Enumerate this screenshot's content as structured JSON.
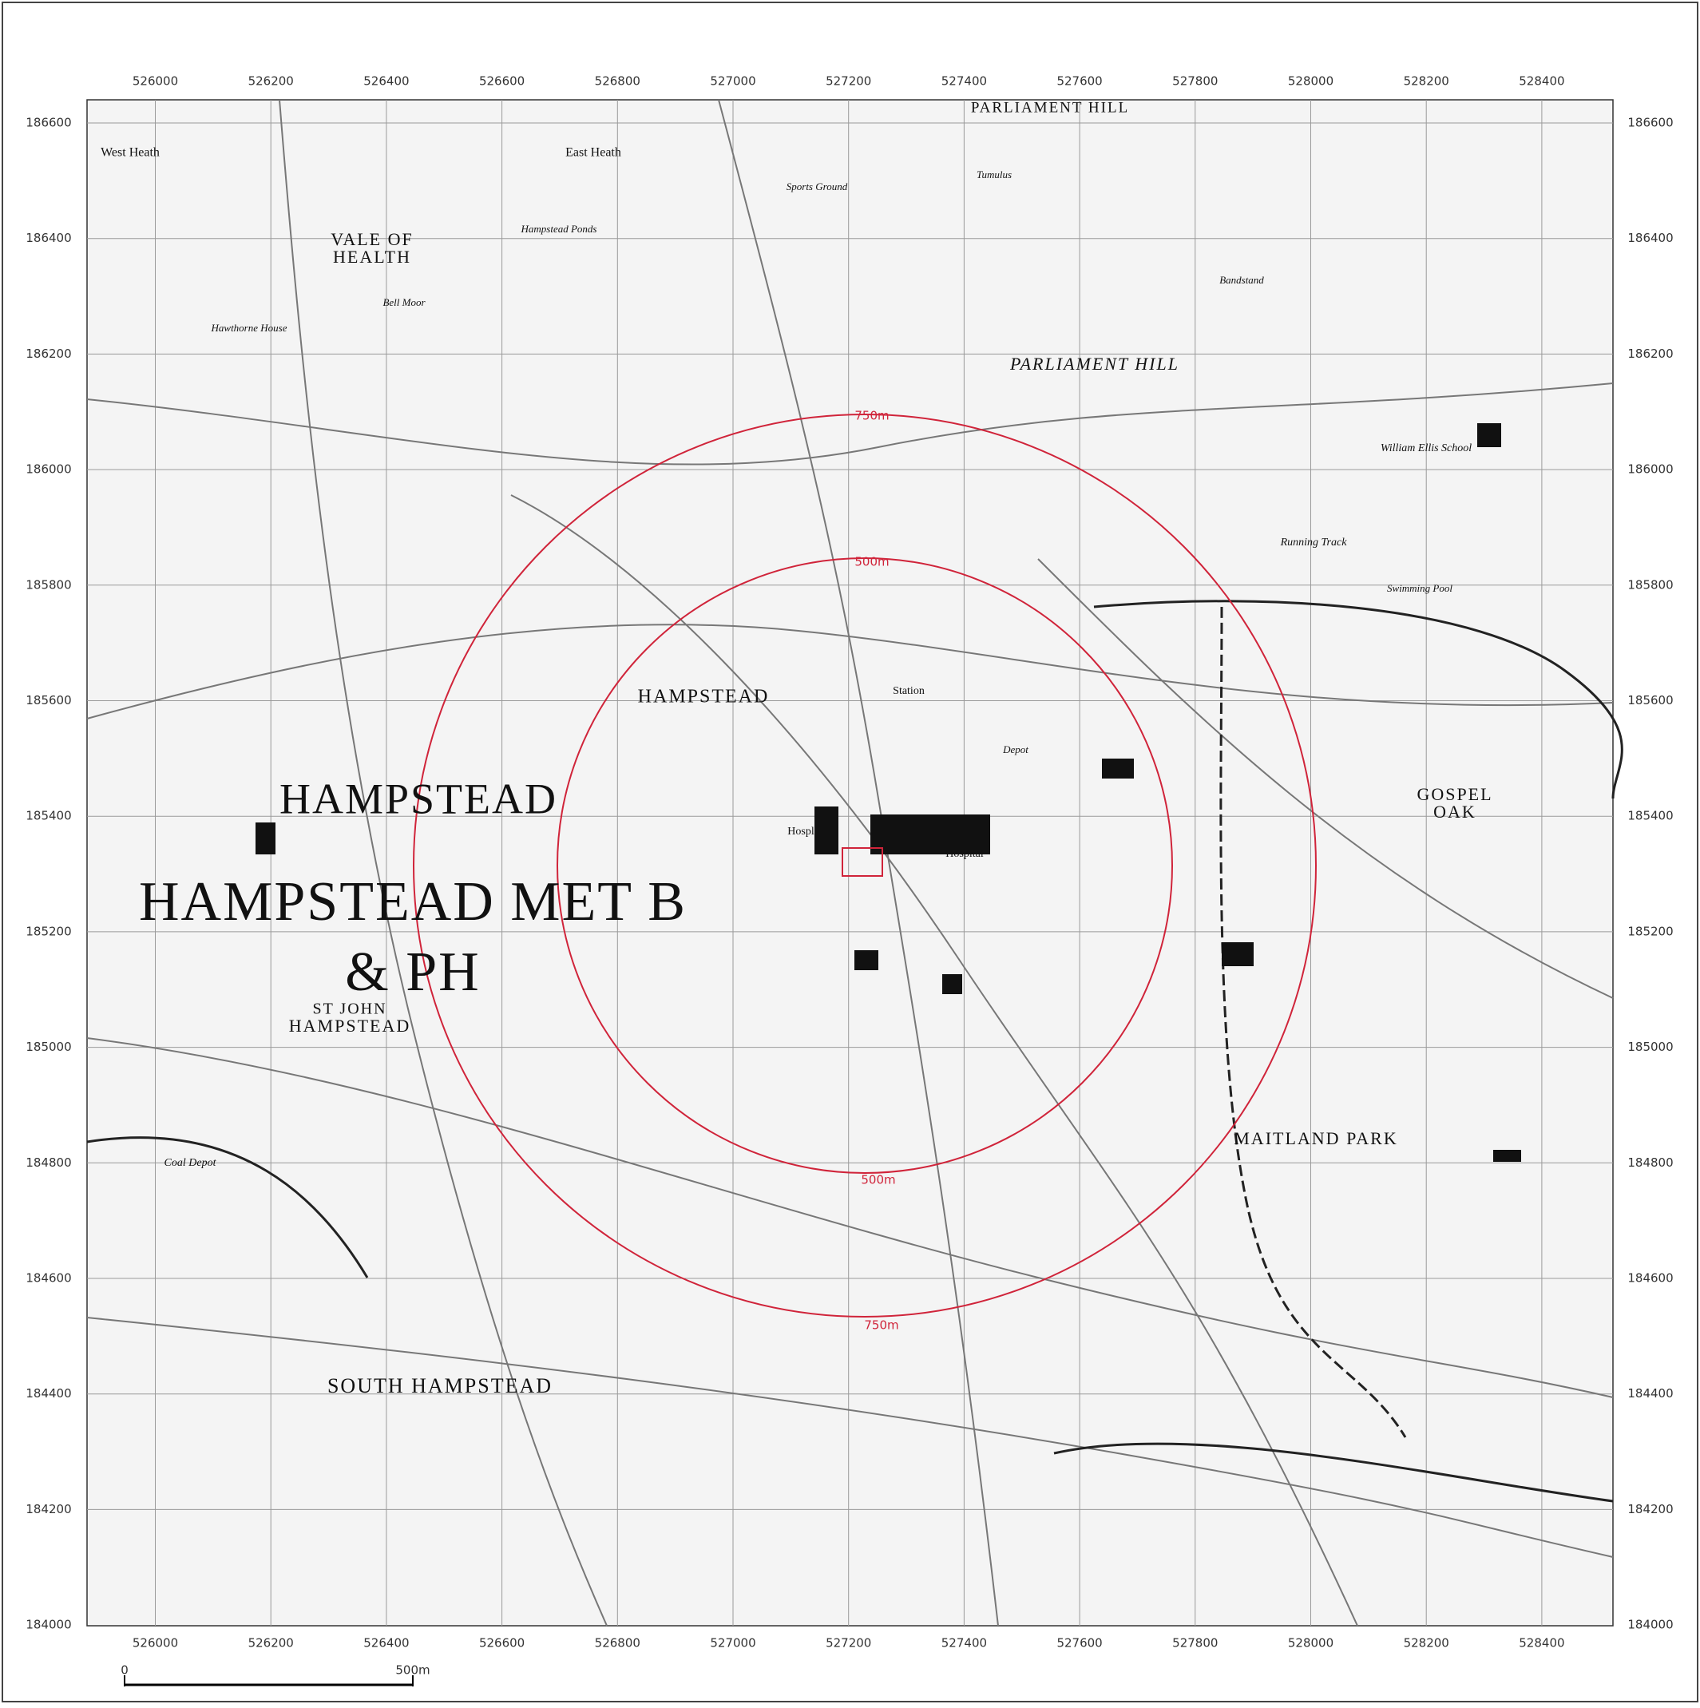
{
  "map": {
    "eastings": [
      526000,
      526200,
      526400,
      526600,
      526800,
      527000,
      527200,
      527400,
      527600,
      527800,
      528000,
      528200,
      528400
    ],
    "northings": [
      186600,
      186400,
      186200,
      186000,
      185800,
      185600,
      185400,
      185200,
      185000,
      184800,
      184600,
      184400,
      184200,
      184000
    ],
    "places": [
      "PARLIAMENT HILL",
      "West Heath",
      "East Heath",
      "VALE OF",
      "HEALTH",
      "PARLIAMENT HILL",
      "HAMPSTEAD",
      "HAMPSTEAD",
      "HAMPSTEAD MET B",
      "& PH",
      "ST JOHN",
      "HAMPSTEAD",
      "GOSPEL",
      "OAK",
      "MAITLAND PARK",
      "SOUTH HAMPSTEAD",
      "William Ellis School",
      "Running Track",
      "Bandstand",
      "Tumulus",
      "Station",
      "Depot",
      "Hospital",
      "Hospl",
      "Coal Depot",
      "Swimming Pool",
      "Sports Ground",
      "Hampstead Ponds",
      "Hawthorne House",
      "Bell Moor"
    ],
    "buffers": [
      "750m",
      "500m",
      "500m",
      "750m"
    ],
    "scale_bar": {
      "start": "0",
      "end": "500m"
    }
  }
}
